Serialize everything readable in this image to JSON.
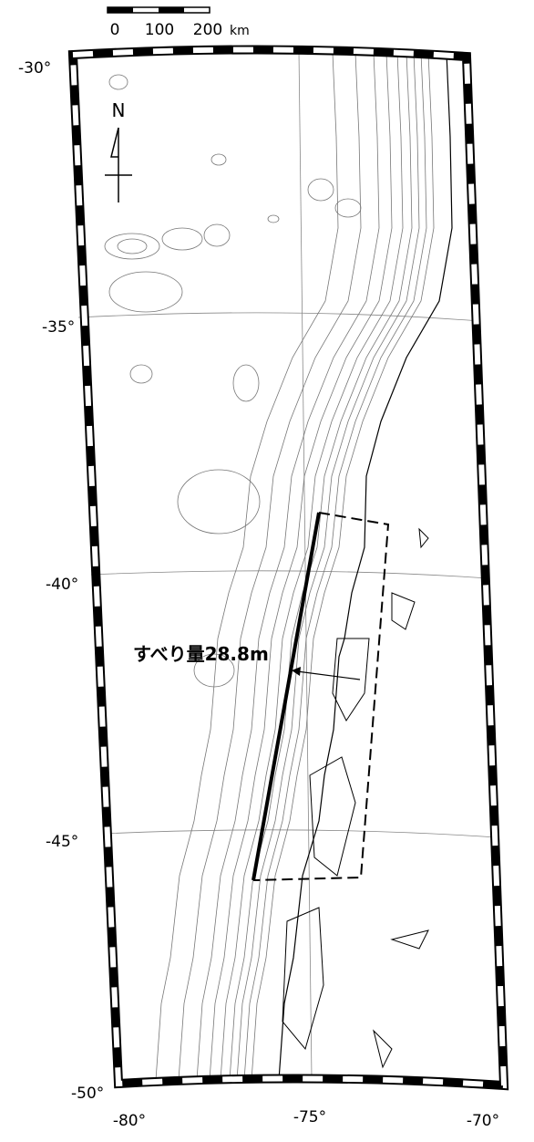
{
  "scale_bar": {
    "labels": [
      "0",
      "100",
      "200"
    ],
    "unit": "km"
  },
  "north": "N",
  "lat_labels": [
    "-30°",
    "-35°",
    "-40°",
    "-45°",
    "-50°"
  ],
  "lon_labels": [
    "-80°",
    "-75°",
    "-70°"
  ],
  "annotation": "すべり量28.8m"
}
